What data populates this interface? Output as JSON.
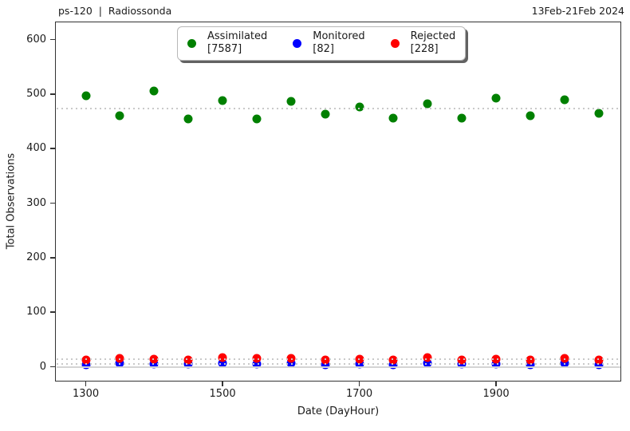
{
  "header": {
    "title": "ps-120  |  Radiossonda",
    "date_range": "13Feb-21Feb 2024"
  },
  "chart_data": {
    "type": "scatter",
    "title": "ps-120 | Radiossonda",
    "xlabel": "Date (DayHour)",
    "ylabel": "Total Observations",
    "grid": "off",
    "legend_position": "top-center",
    "x_dayhour": [
      "1300",
      "1312",
      "1400",
      "1412",
      "1500",
      "1512",
      "1600",
      "1612",
      "1700",
      "1712",
      "1800",
      "1812",
      "1900",
      "1912",
      "2000",
      "2012"
    ],
    "x_slots": [
      0,
      1,
      2,
      3,
      4,
      5,
      6,
      7,
      8,
      9,
      10,
      11,
      12,
      13,
      14,
      15
    ],
    "x_ticks": [
      {
        "label": "1300",
        "slot": 0
      },
      {
        "label": "1500",
        "slot": 4
      },
      {
        "label": "1700",
        "slot": 8
      },
      {
        "label": "1900",
        "slot": 12
      }
    ],
    "y_ticks": [
      0,
      100,
      200,
      300,
      400,
      500,
      600
    ],
    "xlim_slots": [
      -0.9,
      15.66
    ],
    "ylim": [
      -27,
      633
    ],
    "zero_line_y": 0,
    "series": [
      {
        "name": "Assimilated",
        "count": 7587,
        "count_label": "[7587]",
        "color": "#008000",
        "mean": 474.19,
        "values": [
          497,
          460,
          505,
          454,
          488,
          455,
          486,
          463,
          477,
          456,
          483,
          456,
          493,
          460,
          489,
          465
        ]
      },
      {
        "name": "Monitored",
        "count": 82,
        "count_label": "[82]",
        "color": "#0000ff",
        "mean": 5.13,
        "values": [
          4,
          6,
          5,
          5,
          7,
          5,
          6,
          4,
          5,
          4,
          7,
          5,
          5,
          4,
          6,
          4
        ]
      },
      {
        "name": "Rejected",
        "count": 228,
        "count_label": "[228]",
        "color": "#ff0000",
        "mean": 14.25,
        "values": [
          13,
          16,
          14,
          13,
          17,
          15,
          16,
          13,
          14,
          12,
          17,
          13,
          14,
          13,
          15,
          13
        ]
      }
    ],
    "colors": {
      "assimilated": "#008000",
      "monitored": "#0000ff",
      "rejected": "#ff0000",
      "mean_line": "#c9c9c9",
      "zero_line": "#d4d4d4",
      "spine": "#333333"
    }
  }
}
